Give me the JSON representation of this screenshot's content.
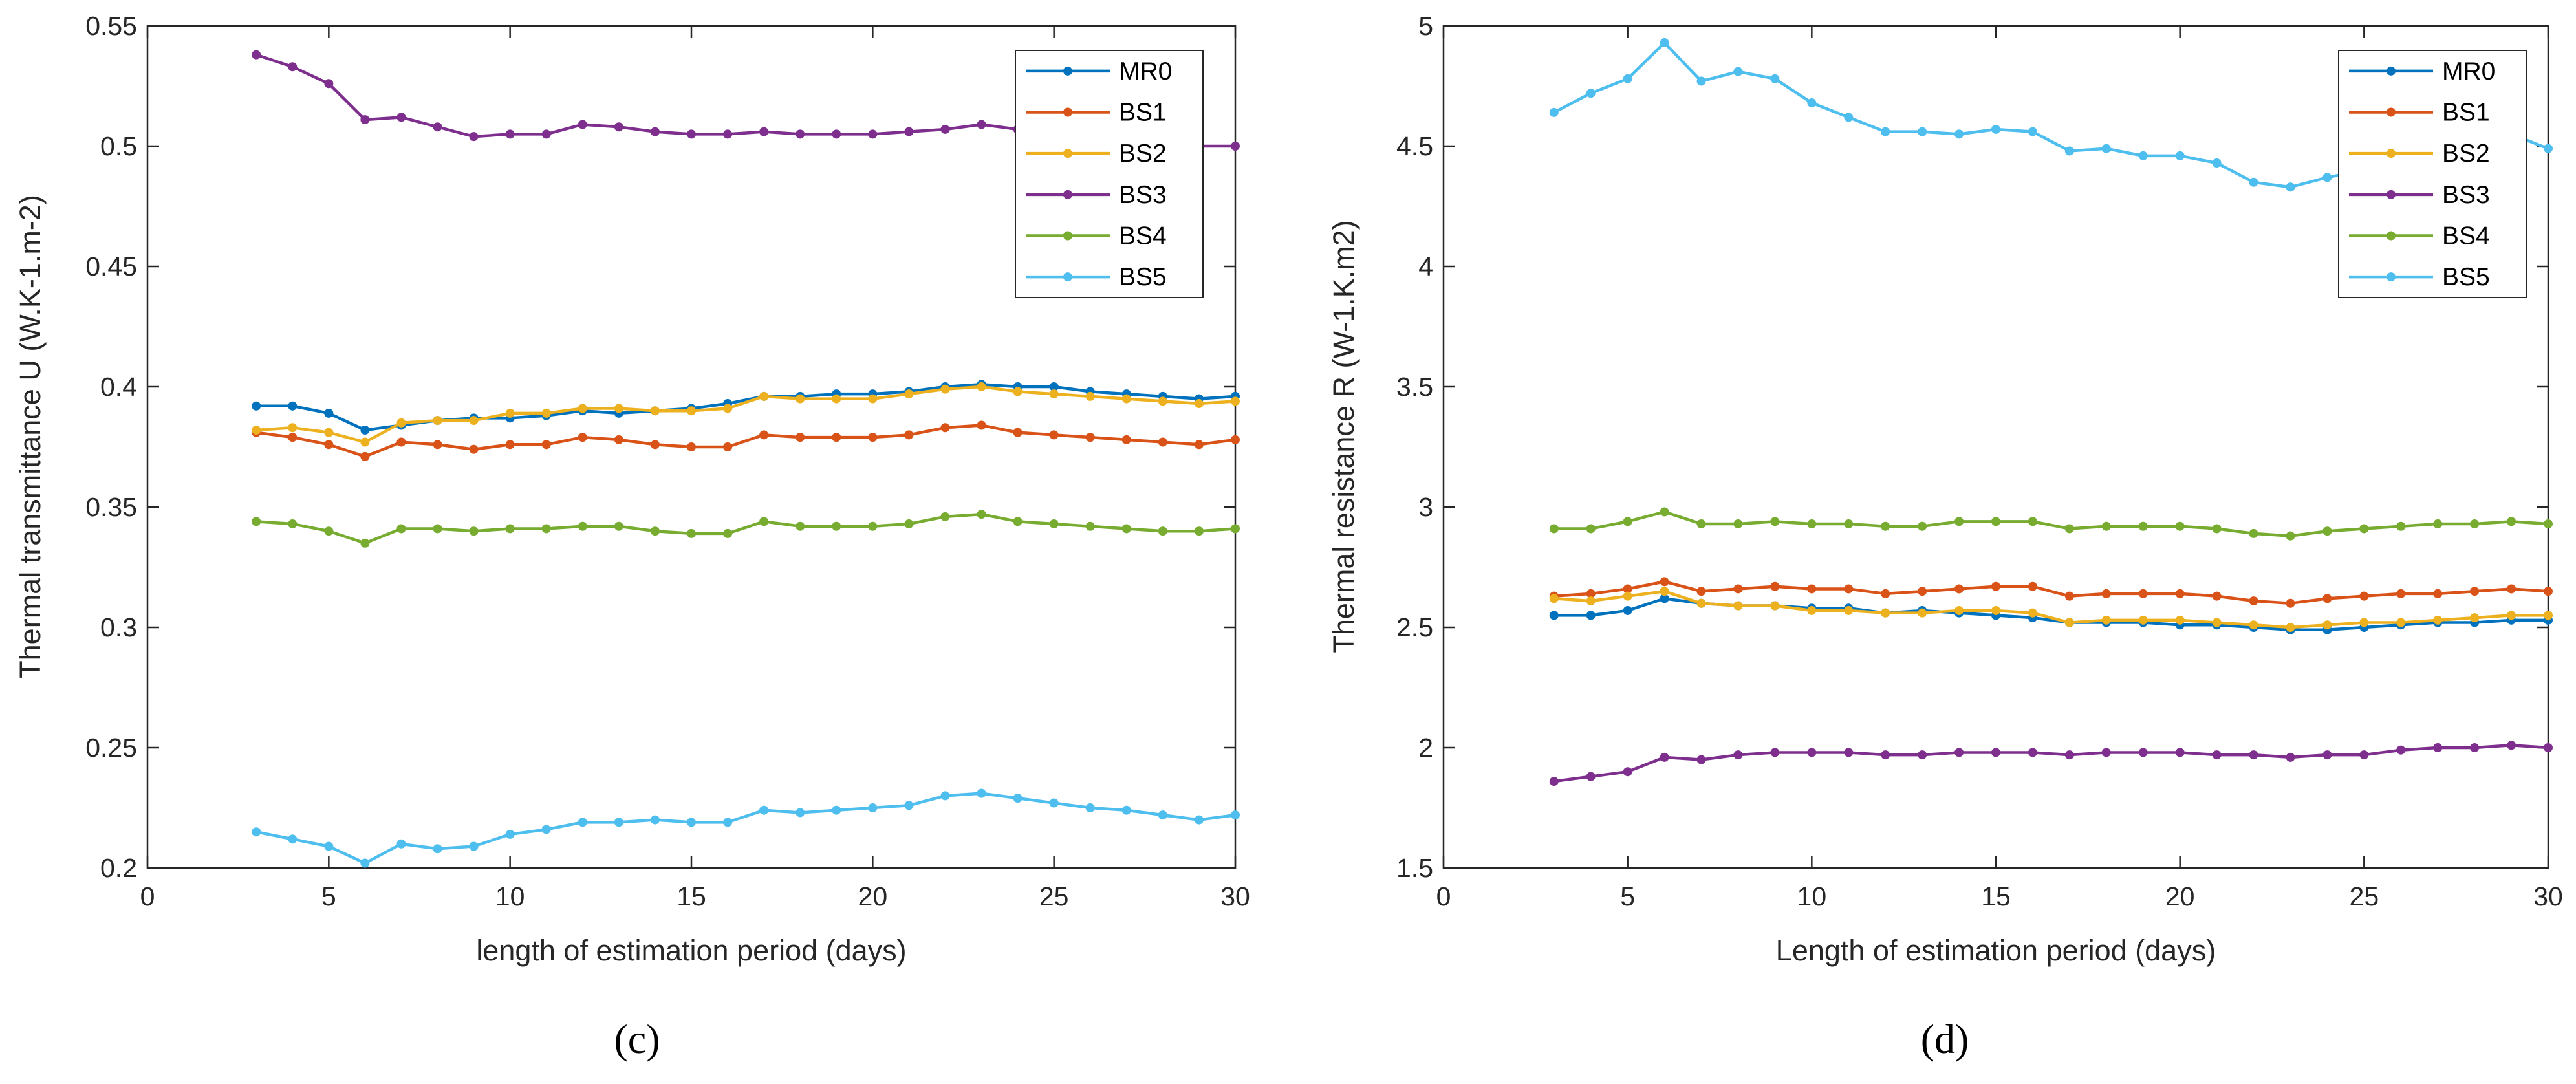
{
  "colors": {
    "MR0": "#0072BD",
    "BS1": "#D95319",
    "BS2": "#EDB120",
    "BS3": "#7E2F8E",
    "BS4": "#77AC30",
    "BS5": "#4DBEEE"
  },
  "chart_data": [
    {
      "type": "line",
      "panel_label": "(c)",
      "xlabel": "length of estimation period (days)",
      "ylabel": "Thermal transmittance U (W.K-1.m-2)",
      "xlim": [
        0,
        30
      ],
      "ylim": [
        0.2,
        0.55
      ],
      "xticks": [
        "0",
        "5",
        "10",
        "15",
        "20",
        "25",
        "30"
      ],
      "yticks": [
        "0.2",
        "0.25",
        "0.3",
        "0.35",
        "0.4",
        "0.45",
        "0.5",
        "0.55"
      ],
      "grid": false,
      "legend_position": "top-right",
      "x": [
        3,
        4,
        5,
        6,
        7,
        8,
        9,
        10,
        11,
        12,
        13,
        14,
        15,
        16,
        17,
        18,
        19,
        20,
        21,
        22,
        23,
        24,
        25,
        26,
        27,
        28,
        29,
        30
      ],
      "series": [
        {
          "name": "MR0",
          "values": [
            0.392,
            0.392,
            0.389,
            0.382,
            0.384,
            0.386,
            0.387,
            0.387,
            0.388,
            0.39,
            0.389,
            0.39,
            0.391,
            0.393,
            0.396,
            0.396,
            0.397,
            0.397,
            0.398,
            0.4,
            0.401,
            0.4,
            0.4,
            0.398,
            0.397,
            0.396,
            0.395,
            0.396
          ]
        },
        {
          "name": "BS1",
          "values": [
            0.381,
            0.379,
            0.376,
            0.371,
            0.377,
            0.376,
            0.374,
            0.376,
            0.376,
            0.379,
            0.378,
            0.376,
            0.375,
            0.375,
            0.38,
            0.379,
            0.379,
            0.379,
            0.38,
            0.383,
            0.384,
            0.381,
            0.38,
            0.379,
            0.378,
            0.377,
            0.376,
            0.378
          ]
        },
        {
          "name": "BS2",
          "values": [
            0.382,
            0.383,
            0.381,
            0.377,
            0.385,
            0.386,
            0.386,
            0.389,
            0.389,
            0.391,
            0.391,
            0.39,
            0.39,
            0.391,
            0.396,
            0.395,
            0.395,
            0.395,
            0.397,
            0.399,
            0.4,
            0.398,
            0.397,
            0.396,
            0.395,
            0.394,
            0.393,
            0.394
          ]
        },
        {
          "name": "BS3",
          "values": [
            0.538,
            0.533,
            0.526,
            0.511,
            0.512,
            0.508,
            0.504,
            0.505,
            0.505,
            0.509,
            0.508,
            0.506,
            0.505,
            0.505,
            0.506,
            0.505,
            0.505,
            0.505,
            0.506,
            0.507,
            0.509,
            0.507,
            0.506,
            0.505,
            0.504,
            0.502,
            0.5,
            0.5
          ]
        },
        {
          "name": "BS4",
          "values": [
            0.344,
            0.343,
            0.34,
            0.335,
            0.341,
            0.341,
            0.34,
            0.341,
            0.341,
            0.342,
            0.342,
            0.34,
            0.339,
            0.339,
            0.344,
            0.342,
            0.342,
            0.342,
            0.343,
            0.346,
            0.347,
            0.344,
            0.343,
            0.342,
            0.341,
            0.34,
            0.34,
            0.341
          ]
        },
        {
          "name": "BS5",
          "values": [
            0.215,
            0.212,
            0.209,
            0.202,
            0.21,
            0.208,
            0.209,
            0.214,
            0.216,
            0.219,
            0.219,
            0.22,
            0.219,
            0.219,
            0.224,
            0.223,
            0.224,
            0.225,
            0.226,
            0.23,
            0.231,
            0.229,
            0.227,
            0.225,
            0.224,
            0.222,
            0.22,
            0.222
          ]
        }
      ]
    },
    {
      "type": "line",
      "panel_label": "(d)",
      "xlabel": "Length of estimation period (days)",
      "ylabel": "Thermal resistance R (W-1.K.m2)",
      "xlim": [
        0,
        30
      ],
      "ylim": [
        1.5,
        5
      ],
      "xticks": [
        "0",
        "5",
        "10",
        "15",
        "20",
        "25",
        "30"
      ],
      "yticks": [
        "1.5",
        "2",
        "2.5",
        "3",
        "3.5",
        "4",
        "4.5",
        "5"
      ],
      "grid": false,
      "legend_position": "top-right",
      "x": [
        3,
        4,
        5,
        6,
        7,
        8,
        9,
        10,
        11,
        12,
        13,
        14,
        15,
        16,
        17,
        18,
        19,
        20,
        21,
        22,
        23,
        24,
        25,
        26,
        27,
        28,
        29,
        30
      ],
      "series": [
        {
          "name": "MR0",
          "values": [
            2.55,
            2.55,
            2.57,
            2.62,
            2.6,
            2.59,
            2.59,
            2.58,
            2.58,
            2.56,
            2.57,
            2.56,
            2.55,
            2.54,
            2.52,
            2.52,
            2.52,
            2.51,
            2.51,
            2.5,
            2.49,
            2.49,
            2.5,
            2.51,
            2.52,
            2.52,
            2.53,
            2.53
          ]
        },
        {
          "name": "BS1",
          "values": [
            2.63,
            2.64,
            2.66,
            2.69,
            2.65,
            2.66,
            2.67,
            2.66,
            2.66,
            2.64,
            2.65,
            2.66,
            2.67,
            2.67,
            2.63,
            2.64,
            2.64,
            2.64,
            2.63,
            2.61,
            2.6,
            2.62,
            2.63,
            2.64,
            2.64,
            2.65,
            2.66,
            2.65
          ]
        },
        {
          "name": "BS2",
          "values": [
            2.62,
            2.61,
            2.63,
            2.65,
            2.6,
            2.59,
            2.59,
            2.57,
            2.57,
            2.56,
            2.56,
            2.57,
            2.57,
            2.56,
            2.52,
            2.53,
            2.53,
            2.53,
            2.52,
            2.51,
            2.5,
            2.51,
            2.52,
            2.52,
            2.53,
            2.54,
            2.55,
            2.55
          ]
        },
        {
          "name": "BS3",
          "values": [
            1.86,
            1.88,
            1.9,
            1.96,
            1.95,
            1.97,
            1.98,
            1.98,
            1.98,
            1.97,
            1.97,
            1.98,
            1.98,
            1.98,
            1.97,
            1.98,
            1.98,
            1.98,
            1.97,
            1.97,
            1.96,
            1.97,
            1.97,
            1.99,
            2.0,
            2.0,
            2.01,
            2.0
          ]
        },
        {
          "name": "BS4",
          "values": [
            2.91,
            2.91,
            2.94,
            2.98,
            2.93,
            2.93,
            2.94,
            2.93,
            2.93,
            2.92,
            2.92,
            2.94,
            2.94,
            2.94,
            2.91,
            2.92,
            2.92,
            2.92,
            2.91,
            2.89,
            2.88,
            2.9,
            2.91,
            2.92,
            2.93,
            2.93,
            2.94,
            2.93
          ]
        },
        {
          "name": "BS5",
          "values": [
            4.64,
            4.72,
            4.78,
            4.93,
            4.77,
            4.81,
            4.78,
            4.68,
            4.62,
            4.56,
            4.56,
            4.55,
            4.57,
            4.56,
            4.48,
            4.49,
            4.46,
            4.46,
            4.43,
            4.35,
            4.33,
            4.37,
            4.4,
            4.44,
            4.48,
            4.52,
            4.55,
            4.49
          ]
        }
      ]
    }
  ]
}
